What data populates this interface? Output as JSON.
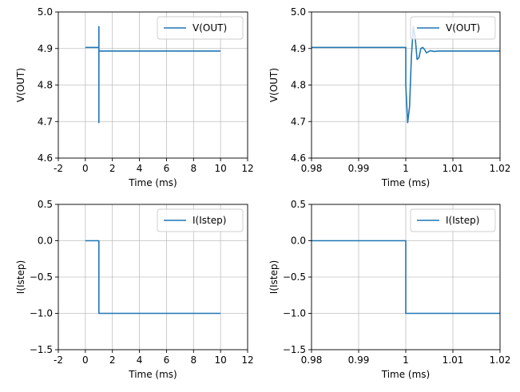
{
  "chart_data": [
    {
      "type": "line",
      "title": "",
      "xlabel": "Time (ms)",
      "ylabel": "V(OUT)",
      "xlim": [
        -2,
        12
      ],
      "ylim": [
        4.6,
        5.0
      ],
      "xticks": [
        -2,
        0,
        2,
        4,
        6,
        8,
        10,
        12
      ],
      "xticklabels": [
        "-2",
        "0",
        "2",
        "4",
        "6",
        "8",
        "10",
        "12"
      ],
      "yticks": [
        4.6,
        4.7,
        4.8,
        4.9,
        5.0
      ],
      "yticklabels": [
        "4.6",
        "4.7",
        "4.8",
        "4.9",
        "5.0"
      ],
      "grid": true,
      "legend": "upper right",
      "series": [
        {
          "name": "V(OUT)",
          "color": "#1f77b4",
          "x": [
            0,
            1.0,
            1.0,
            1.001,
            1.001,
            1.002,
            1.002,
            1.003,
            1.003,
            1.01,
            10
          ],
          "y": [
            4.903,
            4.903,
            4.8,
            4.697,
            4.96,
            4.87,
            4.9,
            4.888,
            4.893,
            4.893,
            4.893
          ]
        }
      ]
    },
    {
      "type": "line",
      "title": "",
      "xlabel": "Time (ms)",
      "ylabel": "V(OUT)",
      "xlim": [
        0.98,
        1.02
      ],
      "ylim": [
        4.6,
        5.0
      ],
      "xticks": [
        0.98,
        0.99,
        1.0,
        1.01,
        1.02
      ],
      "xticklabels": [
        "0.98",
        "0.99",
        "1",
        "1.01",
        "1.02"
      ],
      "yticks": [
        4.6,
        4.7,
        4.8,
        4.9,
        5.0
      ],
      "yticklabels": [
        "4.6",
        "4.7",
        "4.8",
        "4.9",
        "5.0"
      ],
      "grid": true,
      "legend": "upper right",
      "series": [
        {
          "name": "V(OUT)",
          "color": "#1f77b4",
          "x": [
            0.98,
            1.0,
            1.0,
            1.0004,
            1.0008,
            1.0012,
            1.0016,
            1.002,
            1.0024,
            1.0028,
            1.0032,
            1.0036,
            1.004,
            1.0044,
            1.0048,
            1.0052,
            1.0056,
            1.006,
            1.007,
            1.008,
            1.02
          ],
          "y": [
            4.903,
            4.903,
            4.8,
            4.697,
            4.74,
            4.88,
            4.96,
            4.93,
            4.87,
            4.875,
            4.9,
            4.903,
            4.897,
            4.888,
            4.891,
            4.894,
            4.893,
            4.892,
            4.893,
            4.893,
            4.893
          ]
        }
      ]
    },
    {
      "type": "line",
      "title": "",
      "xlabel": "Time (ms)",
      "ylabel": "I(Istep)",
      "xlim": [
        -2,
        12
      ],
      "ylim": [
        -1.5,
        0.5
      ],
      "xticks": [
        -2,
        0,
        2,
        4,
        6,
        8,
        10,
        12
      ],
      "xticklabels": [
        "-2",
        "0",
        "2",
        "4",
        "6",
        "8",
        "10",
        "12"
      ],
      "yticks": [
        -1.5,
        -1.0,
        -0.5,
        0.0,
        0.5
      ],
      "yticklabels": [
        "−1.5",
        "−1.0",
        "−0.5",
        "0.0",
        "0.5"
      ],
      "grid": true,
      "legend": "upper right",
      "series": [
        {
          "name": "I(Istep)",
          "color": "#1f77b4",
          "x": [
            0,
            1.0,
            1.0,
            10
          ],
          "y": [
            0,
            0,
            -1,
            -1
          ]
        }
      ]
    },
    {
      "type": "line",
      "title": "",
      "xlabel": "Time (ms)",
      "ylabel": "I(Istep)",
      "xlim": [
        0.98,
        1.02
      ],
      "ylim": [
        -1.5,
        0.5
      ],
      "xticks": [
        0.98,
        0.99,
        1.0,
        1.01,
        1.02
      ],
      "xticklabels": [
        "0.98",
        "0.99",
        "1",
        "1.01",
        "1.02"
      ],
      "yticks": [
        -1.5,
        -1.0,
        -0.5,
        0.0,
        0.5
      ],
      "yticklabels": [
        "−1.5",
        "−1.0",
        "−0.5",
        "0.0",
        "0.5"
      ],
      "grid": true,
      "legend": "upper right",
      "series": [
        {
          "name": "I(Istep)",
          "color": "#1f77b4",
          "x": [
            0.98,
            1.0,
            1.0,
            1.02
          ],
          "y": [
            0,
            0,
            -1,
            -1
          ]
        }
      ]
    }
  ]
}
